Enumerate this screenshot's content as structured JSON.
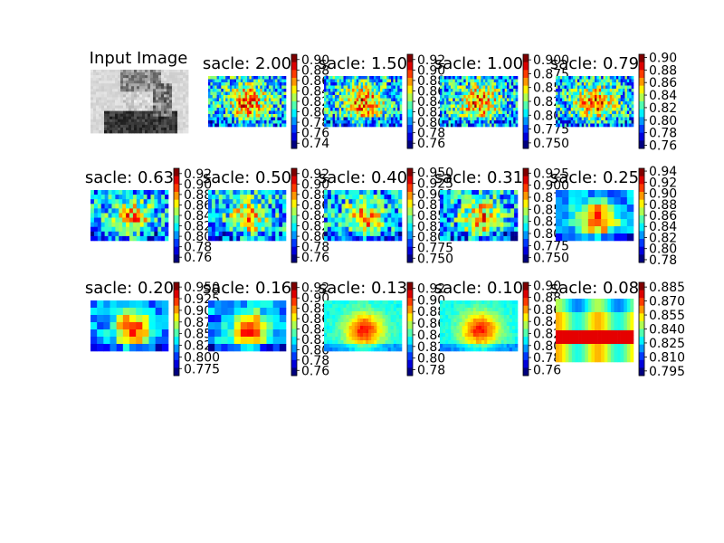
{
  "input_panel": {
    "title": "Input Image"
  },
  "chart_data": [
    {
      "type": "heatmap",
      "title": "sacle: 2.00",
      "colormap": "jet",
      "clim": [
        0.73,
        0.91
      ],
      "ticks": [
        "0.90",
        "0.88",
        "0.86",
        "0.84",
        "0.82",
        "0.80",
        "0.78",
        "0.76",
        "0.74"
      ],
      "pattern": "fine"
    },
    {
      "type": "heatmap",
      "title": "sacle: 1.50",
      "colormap": "jet",
      "clim": [
        0.75,
        0.93
      ],
      "ticks": [
        "0.92",
        "0.90",
        "0.88",
        "0.86",
        "0.84",
        "0.82",
        "0.80",
        "0.78",
        "0.76"
      ],
      "pattern": "fine"
    },
    {
      "type": "heatmap",
      "title": "sacle: 1.00",
      "colormap": "jet",
      "clim": [
        0.74,
        0.91
      ],
      "ticks": [
        "0.900",
        "0.875",
        "0.850",
        "0.825",
        "0.800",
        "0.775",
        "0.750"
      ],
      "pattern": "fine"
    },
    {
      "type": "heatmap",
      "title": "sacle: 0.79",
      "colormap": "jet",
      "clim": [
        0.755,
        0.905
      ],
      "ticks": [
        "0.90",
        "0.88",
        "0.86",
        "0.84",
        "0.82",
        "0.80",
        "0.78",
        "0.76"
      ],
      "pattern": "fine"
    },
    {
      "type": "heatmap",
      "title": "sacle: 0.63",
      "colormap": "jet",
      "clim": [
        0.75,
        0.93
      ],
      "ticks": [
        "0.92",
        "0.90",
        "0.88",
        "0.86",
        "0.84",
        "0.82",
        "0.80",
        "0.78",
        "0.76"
      ],
      "pattern": "medium"
    },
    {
      "type": "heatmap",
      "title": "sacle: 0.50",
      "colormap": "jet",
      "clim": [
        0.75,
        0.93
      ],
      "ticks": [
        "0.92",
        "0.90",
        "0.88",
        "0.86",
        "0.84",
        "0.82",
        "0.80",
        "0.78",
        "0.76"
      ],
      "pattern": "medium"
    },
    {
      "type": "heatmap",
      "title": "sacle: 0.40",
      "colormap": "jet",
      "clim": [
        0.74,
        0.96
      ],
      "ticks": [
        "0.950",
        "0.925",
        "0.900",
        "0.875",
        "0.850",
        "0.825",
        "0.800",
        "0.775",
        "0.750"
      ],
      "pattern": "medium"
    },
    {
      "type": "heatmap",
      "title": "sacle: 0.31",
      "colormap": "jet",
      "clim": [
        0.74,
        0.935
      ],
      "ticks": [
        "0.925",
        "0.900",
        "0.875",
        "0.850",
        "0.825",
        "0.800",
        "0.775",
        "0.750"
      ],
      "pattern": "medium"
    },
    {
      "type": "heatmap",
      "title": "sacle: 0.25",
      "colormap": "jet",
      "clim": [
        0.775,
        0.945
      ],
      "ticks": [
        "0.94",
        "0.92",
        "0.90",
        "0.88",
        "0.86",
        "0.84",
        "0.82",
        "0.80",
        "0.78"
      ],
      "pattern": "coarse"
    },
    {
      "type": "heatmap",
      "title": "sacle: 0.20",
      "colormap": "jet",
      "clim": [
        0.76,
        0.96
      ],
      "ticks": [
        "0.950",
        "0.925",
        "0.900",
        "0.875",
        "0.850",
        "0.825",
        "0.800",
        "0.775"
      ],
      "pattern": "coarse"
    },
    {
      "type": "heatmap",
      "title": "sacle: 0.16",
      "colormap": "jet",
      "clim": [
        0.75,
        0.93
      ],
      "ticks": [
        "0.92",
        "0.90",
        "0.88",
        "0.86",
        "0.84",
        "0.82",
        "0.80",
        "0.78",
        "0.76"
      ],
      "pattern": "coarse"
    },
    {
      "type": "heatmap",
      "title": "sacle: 0.13",
      "colormap": "jet",
      "clim": [
        0.77,
        0.93
      ],
      "ticks": [
        "0.92",
        "0.90",
        "0.88",
        "0.86",
        "0.84",
        "0.82",
        "0.80",
        "0.78"
      ],
      "pattern": "blur"
    },
    {
      "type": "heatmap",
      "title": "sacle: 0.10",
      "colormap": "jet",
      "clim": [
        0.75,
        0.905
      ],
      "ticks": [
        "0.90",
        "0.88",
        "0.86",
        "0.84",
        "0.82",
        "0.80",
        "0.78",
        "0.76"
      ],
      "pattern": "blur"
    },
    {
      "type": "heatmap",
      "title": "sacle: 0.08",
      "colormap": "jet",
      "clim": [
        0.79,
        0.89
      ],
      "ticks": [
        "0.885",
        "0.870",
        "0.855",
        "0.840",
        "0.825",
        "0.810",
        "0.795"
      ],
      "pattern": "bands"
    }
  ]
}
